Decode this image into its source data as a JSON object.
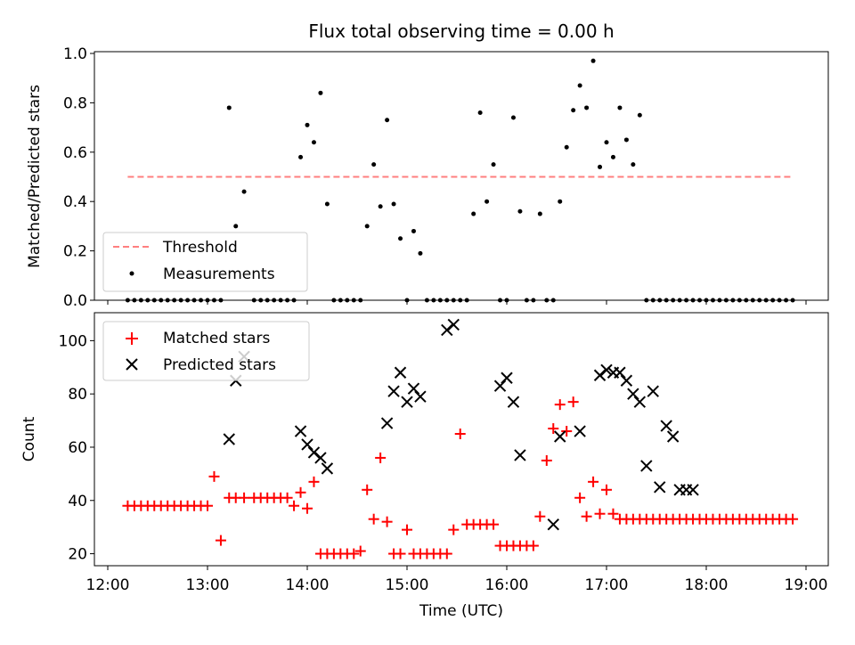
{
  "chart_data": [
    {
      "type": "scatter",
      "title": "Flux total observing time = 0.00 h",
      "ylabel": "Matched/Predicted stars",
      "xlabel": "",
      "xlim": [
        "12:12",
        "19:12"
      ],
      "ylim": [
        0,
        1.0
      ],
      "yticks": [
        "0.0",
        "0.2",
        "0.4",
        "0.6",
        "0.8",
        "1.0"
      ],
      "grid": false,
      "legend_position": "lower-left",
      "threshold": {
        "name": "Threshold",
        "value": 0.5,
        "x_start": "12:12",
        "x_end": "18:52",
        "color": "#ff7f7f"
      },
      "series": [
        {
          "name": "Measurements",
          "color": "#000000",
          "marker": "dot",
          "x": [
            "12:12",
            "12:16",
            "12:20",
            "12:24",
            "12:28",
            "12:32",
            "12:36",
            "12:40",
            "12:44",
            "12:48",
            "12:52",
            "12:56",
            "13:00",
            "13:04",
            "13:08",
            "13:13",
            "13:17",
            "13:22",
            "13:28",
            "13:32",
            "13:36",
            "13:40",
            "13:44",
            "13:48",
            "13:52",
            "13:56",
            "14:00",
            "14:04",
            "14:08",
            "14:12",
            "14:16",
            "14:20",
            "14:24",
            "14:28",
            "14:32",
            "14:36",
            "14:40",
            "14:44",
            "14:48",
            "14:52",
            "14:56",
            "15:00",
            "15:04",
            "15:08",
            "15:12",
            "15:16",
            "15:20",
            "15:24",
            "15:28",
            "15:32",
            "15:36",
            "15:40",
            "15:44",
            "15:48",
            "15:52",
            "15:56",
            "16:00",
            "16:04",
            "16:08",
            "16:12",
            "16:16",
            "16:20",
            "16:24",
            "16:28",
            "16:32",
            "16:36",
            "16:40",
            "16:44",
            "16:48",
            "16:52",
            "16:56",
            "17:00",
            "17:04",
            "17:08",
            "17:12",
            "17:16",
            "17:20",
            "17:24",
            "17:28",
            "17:32",
            "17:36",
            "17:40",
            "17:44",
            "17:48",
            "17:52",
            "17:56",
            "18:00",
            "18:04",
            "18:08",
            "18:12",
            "18:16",
            "18:20",
            "18:24",
            "18:28",
            "18:32",
            "18:36",
            "18:40",
            "18:44",
            "18:48",
            "18:52"
          ],
          "y": [
            0,
            0,
            0,
            0,
            0,
            0,
            0,
            0,
            0,
            0,
            0,
            0,
            0,
            0,
            0,
            0.78,
            0.3,
            0.44,
            0,
            0,
            0,
            0,
            0,
            0,
            0,
            0.58,
            0.71,
            0.64,
            0.84,
            0.39,
            0,
            0,
            0,
            0,
            0,
            0.3,
            0.55,
            0.38,
            0.73,
            0.39,
            0.25,
            0,
            0.28,
            0.19,
            0,
            0,
            0,
            0,
            0,
            0,
            0,
            0.35,
            0.76,
            0.4,
            0.55,
            0,
            0,
            0.74,
            0.36,
            0,
            0,
            0.35,
            0,
            0,
            0.4,
            0.62,
            0.77,
            0.87,
            0.78,
            0.97,
            0.54,
            0.64,
            0.58,
            0.78,
            0.65,
            0.55,
            0.75,
            0,
            0,
            0,
            0,
            0,
            0,
            0,
            0,
            0,
            0,
            0,
            0,
            0,
            0,
            0,
            0,
            0,
            0,
            0,
            0,
            0,
            0,
            0
          ]
        }
      ]
    },
    {
      "type": "scatter",
      "title": "",
      "xlabel": "Time (UTC)",
      "ylabel": "Count",
      "xlim": [
        "12:12",
        "19:12"
      ],
      "ylim": [
        15.5,
        110.5
      ],
      "xticks": [
        "12:00",
        "13:00",
        "14:00",
        "15:00",
        "16:00",
        "17:00",
        "18:00",
        "19:00"
      ],
      "yticks": [
        "20",
        "40",
        "60",
        "80",
        "100"
      ],
      "grid": false,
      "legend_position": "upper-left",
      "series": [
        {
          "name": "Matched stars",
          "color": "#ff0000",
          "marker": "plus",
          "x": [
            "12:12",
            "12:16",
            "12:20",
            "12:24",
            "12:28",
            "12:32",
            "12:36",
            "12:40",
            "12:44",
            "12:48",
            "12:52",
            "12:56",
            "13:00",
            "13:04",
            "13:08",
            "13:13",
            "13:17",
            "13:22",
            "13:28",
            "13:32",
            "13:36",
            "13:40",
            "13:44",
            "13:48",
            "13:52",
            "13:56",
            "14:00",
            "14:04",
            "14:08",
            "14:12",
            "14:16",
            "14:20",
            "14:24",
            "14:28",
            "14:32",
            "14:36",
            "14:40",
            "14:44",
            "14:48",
            "14:52",
            "14:56",
            "15:00",
            "15:04",
            "15:08",
            "15:12",
            "15:16",
            "15:20",
            "15:24",
            "15:28",
            "15:32",
            "15:36",
            "15:40",
            "15:44",
            "15:48",
            "15:52",
            "15:56",
            "16:00",
            "16:04",
            "16:08",
            "16:12",
            "16:16",
            "16:20",
            "16:24",
            "16:28",
            "16:32",
            "16:36",
            "16:40",
            "16:44",
            "16:48",
            "16:52",
            "16:56",
            "17:00",
            "17:04",
            "17:08",
            "17:12",
            "17:16",
            "17:20",
            "17:24",
            "17:28",
            "17:32",
            "17:36",
            "17:40",
            "17:44",
            "17:48",
            "17:52",
            "17:56",
            "18:00",
            "18:04",
            "18:08",
            "18:12",
            "18:16",
            "18:20",
            "18:24",
            "18:28",
            "18:32",
            "18:36",
            "18:40",
            "18:44",
            "18:48",
            "18:52"
          ],
          "y": [
            38,
            38,
            38,
            38,
            38,
            38,
            38,
            38,
            38,
            38,
            38,
            38,
            38,
            49,
            25,
            41,
            41,
            41,
            41,
            41,
            41,
            41,
            41,
            41,
            38,
            43,
            37,
            47,
            20,
            20,
            20,
            20,
            20,
            20,
            21,
            44,
            33,
            56,
            32,
            20,
            20,
            29,
            20,
            20,
            20,
            20,
            20,
            20,
            29,
            65,
            31,
            31,
            31,
            31,
            31,
            23,
            23,
            23,
            23,
            23,
            23,
            34,
            55,
            67,
            76,
            66,
            77,
            41,
            34,
            47,
            35,
            44,
            35,
            33,
            33,
            33,
            33,
            33,
            33,
            33,
            33,
            33,
            33,
            33,
            33,
            33,
            33,
            33,
            33,
            33,
            33,
            33,
            33,
            33,
            33,
            33,
            33,
            33,
            33,
            33
          ]
        },
        {
          "name": "Predicted stars",
          "color": "#000000",
          "marker": "x",
          "x": [
            "13:13",
            "13:17",
            "13:22",
            "13:56",
            "14:00",
            "14:04",
            "14:08",
            "14:12",
            "14:48",
            "14:52",
            "14:56",
            "15:00",
            "15:04",
            "15:08",
            "15:24",
            "15:28",
            "15:56",
            "16:00",
            "16:04",
            "16:08",
            "16:28",
            "16:32",
            "16:44",
            "16:56",
            "17:00",
            "17:04",
            "17:08",
            "17:12",
            "17:16",
            "17:20",
            "17:24",
            "17:28",
            "17:32",
            "17:36",
            "17:40",
            "17:44",
            "17:48",
            "17:52"
          ],
          "y": [
            63,
            85,
            94,
            66,
            61,
            58,
            56,
            52,
            69,
            81,
            88,
            77,
            82,
            79,
            104,
            106,
            83,
            86,
            77,
            57,
            31,
            64,
            66,
            87,
            89,
            88,
            88,
            85,
            80,
            77,
            53,
            81,
            45,
            68,
            64,
            44,
            44,
            44
          ]
        }
      ]
    }
  ]
}
